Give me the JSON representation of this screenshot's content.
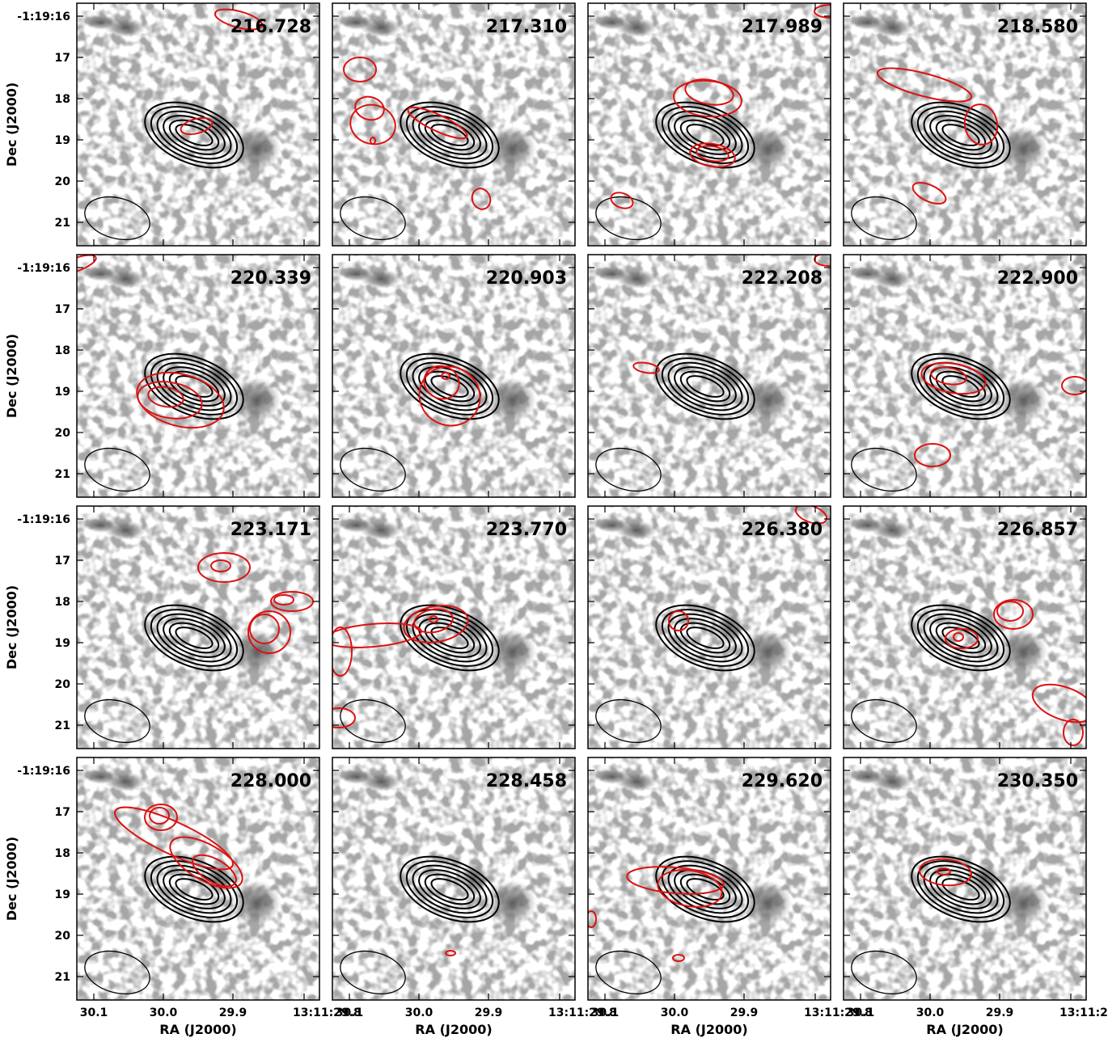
{
  "chart_data": {
    "type": "contour",
    "xlabel": "RA (J2000)",
    "ylabel": "Dec (J2000)",
    "x_tick_labels": [
      "30.1",
      "30.0",
      "29.9",
      "13:11:29.8"
    ],
    "y_tick_labels": [
      "-1:19:16",
      "17",
      "18",
      "19",
      "20",
      "21"
    ],
    "grid": "4x4",
    "colors": {
      "continuum_contours": "#000000",
      "line_contours": "#dd1111",
      "background": "greyscale image"
    },
    "panels": [
      {
        "frequency": "216.728"
      },
      {
        "frequency": "217.310"
      },
      {
        "frequency": "217.989"
      },
      {
        "frequency": "218.580"
      },
      {
        "frequency": "220.339"
      },
      {
        "frequency": "220.903"
      },
      {
        "frequency": "222.208"
      },
      {
        "frequency": "222.900"
      },
      {
        "frequency": "223.171"
      },
      {
        "frequency": "223.770"
      },
      {
        "frequency": "226.380"
      },
      {
        "frequency": "226.857"
      },
      {
        "frequency": "228.000"
      },
      {
        "frequency": "228.458"
      },
      {
        "frequency": "229.620"
      },
      {
        "frequency": "230.350"
      }
    ]
  }
}
